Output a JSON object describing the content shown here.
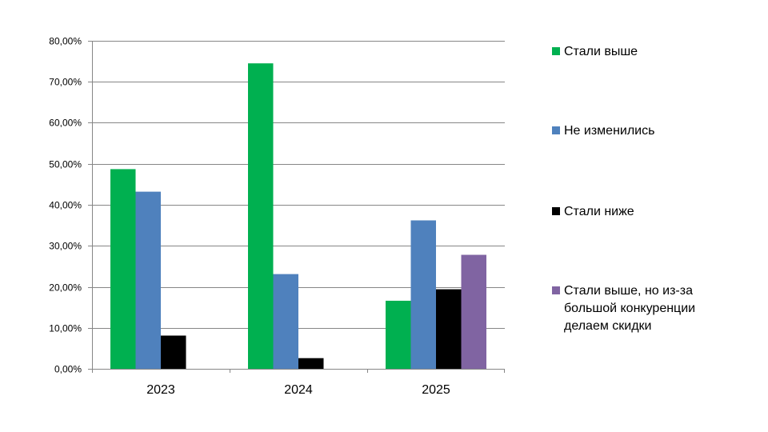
{
  "chart_data": {
    "type": "bar",
    "categories": [
      "2023",
      "2024",
      "2025"
    ],
    "series": [
      {
        "name": "Стали выше",
        "color": "#00B050",
        "values": [
          0.487,
          0.745,
          0.166
        ]
      },
      {
        "name": "Не изменились",
        "color": "#4F81BD",
        "values": [
          0.432,
          0.231,
          0.362
        ]
      },
      {
        "name": "Стали ниже",
        "color": "#000000",
        "values": [
          0.081,
          0.026,
          0.194
        ]
      },
      {
        "name": "Стали выше, но из-за большой конкуренции делаем скидки",
        "color": "#8064A2",
        "values": [
          null,
          null,
          0.278
        ]
      }
    ],
    "yticks": [
      "0,00%",
      "10,00%",
      "20,00%",
      "30,00%",
      "40,00%",
      "50,00%",
      "60,00%",
      "70,00%",
      "80,00%"
    ],
    "ylim": [
      0,
      0.8
    ],
    "grid": true,
    "legend_position": "right"
  }
}
